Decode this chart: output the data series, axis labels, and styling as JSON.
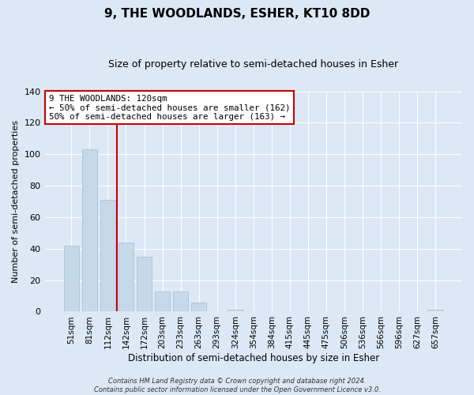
{
  "title": "9, THE WOODLANDS, ESHER, KT10 8DD",
  "subtitle": "Size of property relative to semi-detached houses in Esher",
  "xlabel": "Distribution of semi-detached houses by size in Esher",
  "ylabel": "Number of semi-detached properties",
  "bar_color": "#c6d9ea",
  "bar_edge_color": "#a8c4d8",
  "bin_labels": [
    "51sqm",
    "81sqm",
    "112sqm",
    "142sqm",
    "172sqm",
    "203sqm",
    "233sqm",
    "263sqm",
    "293sqm",
    "324sqm",
    "354sqm",
    "384sqm",
    "415sqm",
    "445sqm",
    "475sqm",
    "506sqm",
    "536sqm",
    "566sqm",
    "596sqm",
    "627sqm",
    "657sqm"
  ],
  "bar_values": [
    42,
    103,
    71,
    44,
    35,
    13,
    13,
    6,
    0,
    1,
    0,
    0,
    0,
    0,
    0,
    0,
    0,
    0,
    0,
    0,
    1
  ],
  "ylim": [
    0,
    140
  ],
  "yticks": [
    0,
    20,
    40,
    60,
    80,
    100,
    120,
    140
  ],
  "vline_x": 2.5,
  "vline_color": "#cc0000",
  "annotation_title": "9 THE WOODLANDS: 120sqm",
  "annotation_line1": "← 50% of semi-detached houses are smaller (162)",
  "annotation_line2": "50% of semi-detached houses are larger (163) →",
  "annotation_box_facecolor": "#ffffff",
  "annotation_box_edgecolor": "#cc0000",
  "footer_line1": "Contains HM Land Registry data © Crown copyright and database right 2024.",
  "footer_line2": "Contains public sector information licensed under the Open Government Licence v3.0.",
  "fig_facecolor": "#dce8f5",
  "plot_facecolor": "#dce8f5",
  "grid_color": "#ffffff",
  "title_fontsize": 11,
  "subtitle_fontsize": 9,
  "ylabel_fontsize": 8,
  "xlabel_fontsize": 8.5,
  "tick_fontsize": 8,
  "xtick_fontsize": 7.5,
  "footer_fontsize": 6
}
